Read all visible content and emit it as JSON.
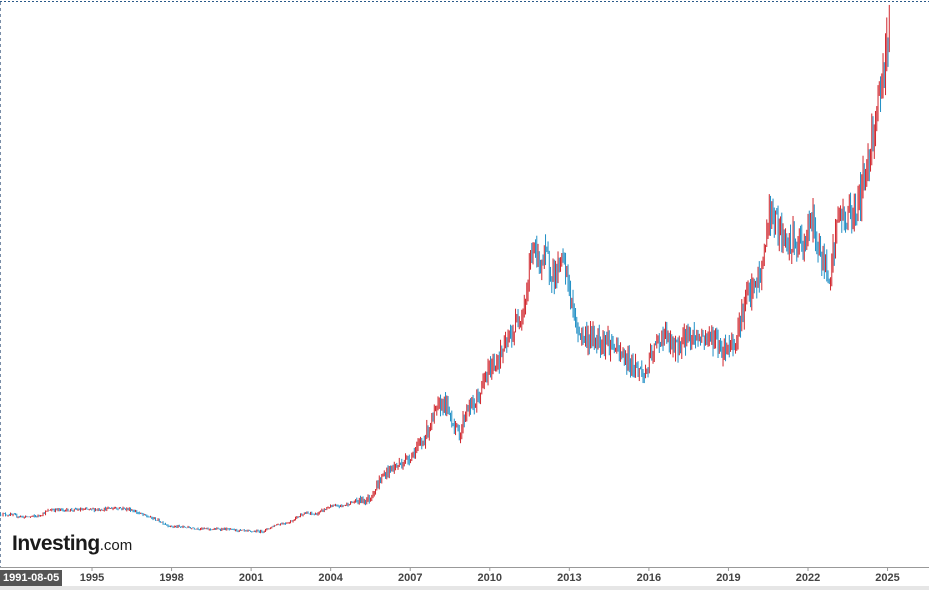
{
  "chart_data": {
    "type": "line",
    "series_style": "candlestick",
    "x_ticks": [
      "1995",
      "1998",
      "2001",
      "2004",
      "2007",
      "2010",
      "2013",
      "2016",
      "2019",
      "2022",
      "2025"
    ],
    "start_date_label": "1991-08-05",
    "grid": false,
    "legend": "none",
    "up_color": "#d0252c",
    "down_color": "#1f8ec5",
    "x": [
      1991.6,
      1992.0,
      1992.5,
      1993.0,
      1993.5,
      1994.0,
      1994.5,
      1995.0,
      1995.5,
      1996.0,
      1996.5,
      1997.0,
      1997.5,
      1998.0,
      1998.5,
      1999.0,
      1999.5,
      2000.0,
      2000.5,
      2001.0,
      2001.5,
      2002.0,
      2002.5,
      2003.0,
      2003.5,
      2004.0,
      2004.5,
      2005.0,
      2005.5,
      2006.0,
      2006.3,
      2006.6,
      2007.0,
      2007.5,
      2008.0,
      2008.3,
      2008.6,
      2008.9,
      2009.2,
      2009.5,
      2010.0,
      2010.5,
      2011.0,
      2011.4,
      2011.65,
      2011.9,
      2012.2,
      2012.5,
      2012.8,
      2013.0,
      2013.3,
      2013.6,
      2014.0,
      2014.5,
      2015.0,
      2015.5,
      2015.9,
      2016.3,
      2016.6,
      2017.0,
      2017.5,
      2018.0,
      2018.5,
      2018.8,
      2019.3,
      2019.7,
      2020.0,
      2020.3,
      2020.6,
      2020.9,
      2021.2,
      2021.5,
      2021.9,
      2022.2,
      2022.6,
      2022.9,
      2023.2,
      2023.5,
      2023.9,
      2024.2,
      2024.5,
      2024.8,
      2025.0,
      2025.15
    ],
    "y": [
      362,
      356,
      345,
      350,
      385,
      382,
      384,
      385,
      387,
      395,
      385,
      355,
      330,
      295,
      292,
      285,
      280,
      282,
      275,
      268,
      270,
      305,
      318,
      365,
      360,
      400,
      405,
      430,
      440,
      560,
      600,
      620,
      660,
      740,
      900,
      960,
      870,
      780,
      930,
      940,
      1120,
      1210,
      1350,
      1500,
      1780,
      1700,
      1720,
      1620,
      1700,
      1600,
      1350,
      1300,
      1290,
      1280,
      1200,
      1150,
      1100,
      1250,
      1320,
      1230,
      1310,
      1300,
      1300,
      1230,
      1280,
      1500,
      1550,
      1640,
      1970,
      1880,
      1780,
      1800,
      1790,
      1920,
      1700,
      1650,
      1950,
      1930,
      2000,
      2150,
      2400,
      2650,
      2800,
      3050
    ],
    "xlim": [
      1991.58,
      2026.5
    ],
    "ylim": [
      80,
      3080
    ]
  },
  "logo": {
    "main": "Investing",
    "suffix": ".com"
  }
}
